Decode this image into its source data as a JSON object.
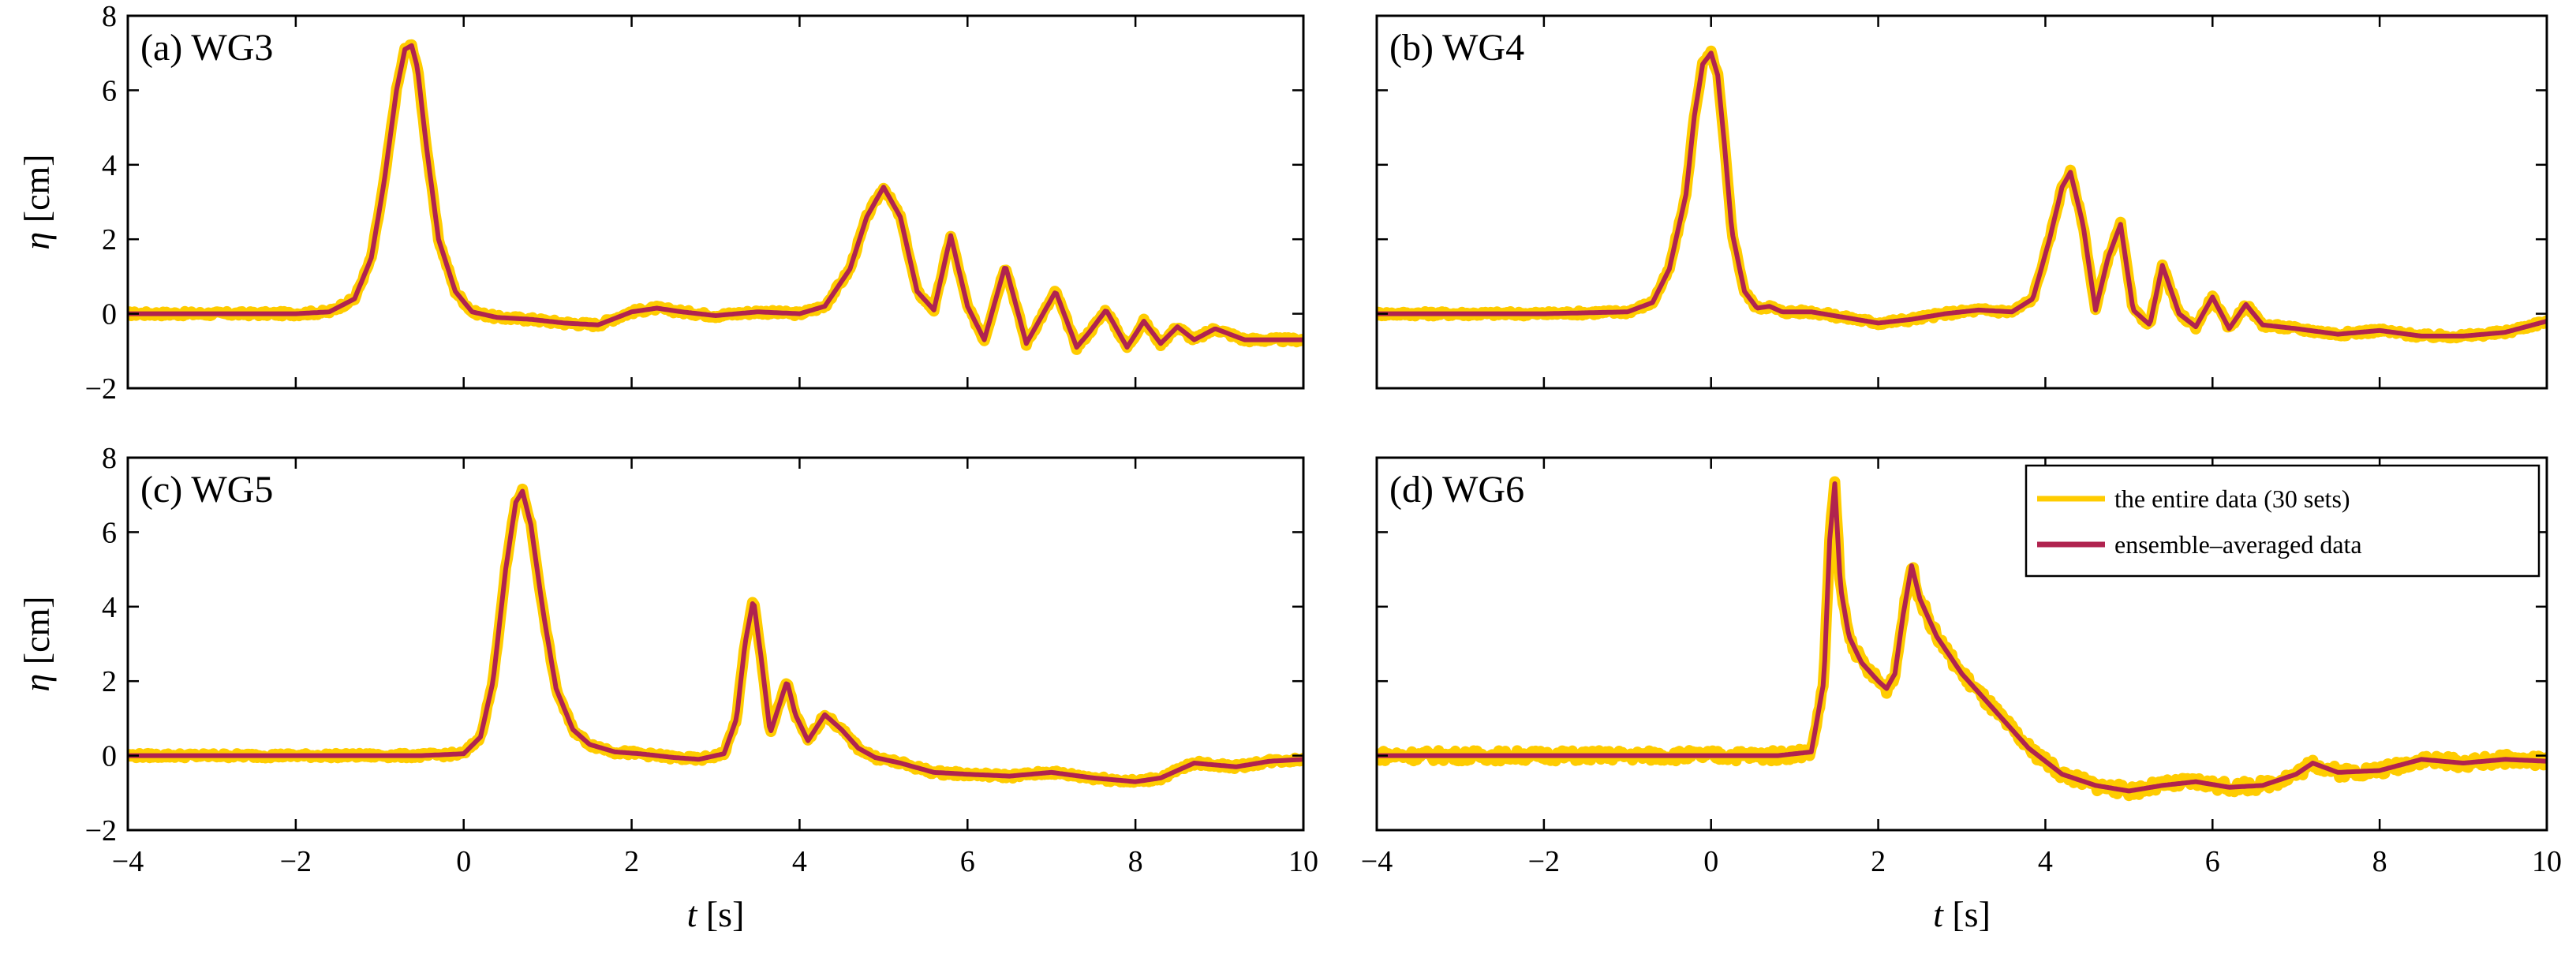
{
  "colors": {
    "entire": "#FFCC00",
    "ensemble": "#B0234F",
    "axis": "#000000",
    "background": "#FFFFFF"
  },
  "legend": {
    "entire": "the entire data (30 sets)",
    "ensemble": "ensemble–averaged data",
    "panel": 3
  },
  "chart_data": [
    {
      "type": "line",
      "panel_label": "(a) WG3",
      "xlabel_var": "t",
      "xlabel_unit": "[s]",
      "ylabel_var": "η",
      "ylabel_unit": "[cm]",
      "xlim": [
        -4,
        10
      ],
      "ylim": [
        -2,
        8
      ],
      "xticks": [
        "-4",
        "-2",
        "0",
        "2",
        "4",
        "6",
        "8",
        "10"
      ],
      "yticks": [
        "-2",
        "0",
        "2",
        "4",
        "6",
        "8"
      ],
      "show_xticklabels": false,
      "noise": 0.12,
      "series": [
        {
          "name": "ensemble–averaged data",
          "x": [
            -4,
            -3,
            -2,
            -1.6,
            -1.3,
            -1.1,
            -0.95,
            -0.8,
            -0.7,
            -0.62,
            -0.55,
            -0.45,
            -0.3,
            -0.1,
            0.1,
            0.4,
            0.8,
            1.2,
            1.6,
            2.0,
            2.3,
            2.6,
            3.0,
            3.5,
            4.0,
            4.3,
            4.6,
            4.8,
            5.0,
            5.2,
            5.4,
            5.6,
            5.8,
            6.0,
            6.2,
            6.45,
            6.7,
            6.85,
            7.05,
            7.3,
            7.45,
            7.65,
            7.9,
            8.1,
            8.3,
            8.5,
            8.7,
            8.95,
            9.3,
            10
          ],
          "y": [
            0,
            0,
            0,
            0.05,
            0.4,
            1.5,
            3.5,
            6.0,
            7.1,
            7.2,
            6.6,
            4.6,
            2.0,
            0.6,
            0.05,
            -0.1,
            -0.15,
            -0.25,
            -0.3,
            0.05,
            0.15,
            0.05,
            -0.05,
            0.05,
            0.0,
            0.2,
            1.2,
            2.6,
            3.4,
            2.6,
            0.6,
            0.1,
            2.1,
            0.2,
            -0.7,
            1.3,
            -0.8,
            -0.2,
            0.6,
            -0.9,
            -0.5,
            0.1,
            -0.9,
            -0.2,
            -0.8,
            -0.35,
            -0.7,
            -0.4,
            -0.7,
            -0.7
          ]
        }
      ]
    },
    {
      "type": "line",
      "panel_label": "(b) WG4",
      "xlabel_var": "t",
      "xlabel_unit": "[s]",
      "ylabel_var": "η",
      "ylabel_unit": "[cm]",
      "xlim": [
        -4,
        10
      ],
      "ylim": [
        -2,
        8
      ],
      "xticks": [
        "-4",
        "-2",
        "0",
        "2",
        "4",
        "6",
        "8",
        "10"
      ],
      "yticks": [
        "-2",
        "0",
        "2",
        "4",
        "6",
        "8"
      ],
      "show_xticklabels": false,
      "noise": 0.12,
      "series": [
        {
          "name": "ensemble–averaged data",
          "x": [
            -4,
            -3,
            -2,
            -1.0,
            -0.7,
            -0.5,
            -0.3,
            -0.2,
            -0.1,
            0.0,
            0.08,
            0.15,
            0.25,
            0.4,
            0.55,
            0.7,
            0.85,
            1.2,
            1.6,
            2.0,
            2.4,
            2.8,
            3.2,
            3.6,
            3.85,
            4.05,
            4.2,
            4.3,
            4.45,
            4.6,
            4.75,
            4.9,
            5.05,
            5.25,
            5.4,
            5.6,
            5.8,
            6.0,
            6.2,
            6.4,
            6.6,
            7.0,
            7.5,
            8.0,
            8.5,
            9.0,
            9.5,
            10
          ],
          "y": [
            0,
            0,
            0,
            0.05,
            0.3,
            1.2,
            3.2,
            5.3,
            6.7,
            7.0,
            6.4,
            4.8,
            2.2,
            0.6,
            0.15,
            0.2,
            0.05,
            0.05,
            -0.1,
            -0.25,
            -0.15,
            0.0,
            0.1,
            0.05,
            0.4,
            2.0,
            3.4,
            3.8,
            2.4,
            0.1,
            1.5,
            2.4,
            0.1,
            -0.3,
            1.3,
            0.0,
            -0.35,
            0.45,
            -0.4,
            0.25,
            -0.3,
            -0.4,
            -0.55,
            -0.45,
            -0.6,
            -0.6,
            -0.5,
            -0.2
          ]
        }
      ]
    },
    {
      "type": "line",
      "panel_label": "(c) WG5",
      "xlabel_var": "t",
      "xlabel_unit": "[s]",
      "ylabel_var": "η",
      "ylabel_unit": "[cm]",
      "xlim": [
        -4,
        10
      ],
      "ylim": [
        -2,
        8
      ],
      "xticks": [
        "-4",
        "-2",
        "0",
        "2",
        "4",
        "6",
        "8",
        "10"
      ],
      "yticks": [
        "-2",
        "0",
        "2",
        "4",
        "6",
        "8"
      ],
      "show_xticklabels": true,
      "noise": 0.12,
      "series": [
        {
          "name": "ensemble–averaged data",
          "x": [
            -4,
            -3,
            -2,
            -0.5,
            0.0,
            0.2,
            0.35,
            0.5,
            0.62,
            0.7,
            0.8,
            0.95,
            1.1,
            1.3,
            1.5,
            1.8,
            2.1,
            2.5,
            2.8,
            3.1,
            3.25,
            3.35,
            3.45,
            3.55,
            3.65,
            3.75,
            3.85,
            3.95,
            4.1,
            4.3,
            4.5,
            4.7,
            4.9,
            5.2,
            5.6,
            6.0,
            6.5,
            7.0,
            7.5,
            8.0,
            8.3,
            8.7,
            9.2,
            9.6,
            10
          ],
          "y": [
            0,
            0,
            0,
            0,
            0.05,
            0.5,
            2.0,
            5.0,
            6.8,
            7.1,
            6.2,
            3.8,
            1.8,
            0.7,
            0.3,
            0.1,
            0.05,
            -0.05,
            -0.1,
            0.05,
            1.0,
            3.0,
            4.2,
            2.5,
            0.6,
            1.3,
            2.0,
            1.1,
            0.4,
            1.1,
            0.7,
            0.2,
            -0.05,
            -0.2,
            -0.45,
            -0.5,
            -0.55,
            -0.45,
            -0.6,
            -0.7,
            -0.6,
            -0.2,
            -0.3,
            -0.15,
            -0.1
          ]
        }
      ]
    },
    {
      "type": "line",
      "panel_label": "(d) WG6",
      "xlabel_var": "t",
      "xlabel_unit": "[s]",
      "ylabel_var": "η",
      "ylabel_unit": "[cm]",
      "xlim": [
        -4,
        10
      ],
      "ylim": [
        -2,
        8
      ],
      "xticks": [
        "-4",
        "-2",
        "0",
        "2",
        "4",
        "6",
        "8",
        "10"
      ],
      "yticks": [
        "-2",
        "0",
        "2",
        "4",
        "6",
        "8"
      ],
      "show_xticklabels": true,
      "noise": 0.28,
      "series": [
        {
          "name": "ensemble–averaged data",
          "x": [
            -4,
            -3,
            -2,
            -1,
            0,
            0.8,
            1.2,
            1.35,
            1.42,
            1.48,
            1.55,
            1.65,
            1.8,
            2.0,
            2.1,
            2.2,
            2.3,
            2.4,
            2.5,
            2.7,
            3.0,
            3.4,
            3.8,
            4.2,
            4.6,
            5.0,
            5.4,
            5.8,
            6.2,
            6.6,
            7.0,
            7.2,
            7.5,
            8.0,
            8.5,
            9.0,
            9.5,
            10
          ],
          "y": [
            0,
            0,
            0,
            0,
            0,
            0,
            0.1,
            2.0,
            5.8,
            7.3,
            4.5,
            3.2,
            2.5,
            2.0,
            1.8,
            2.2,
            3.8,
            5.1,
            4.2,
            3.2,
            2.2,
            1.2,
            0.2,
            -0.5,
            -0.8,
            -0.95,
            -0.8,
            -0.7,
            -0.85,
            -0.8,
            -0.5,
            -0.2,
            -0.45,
            -0.4,
            -0.1,
            -0.2,
            -0.1,
            -0.15
          ]
        }
      ]
    }
  ]
}
